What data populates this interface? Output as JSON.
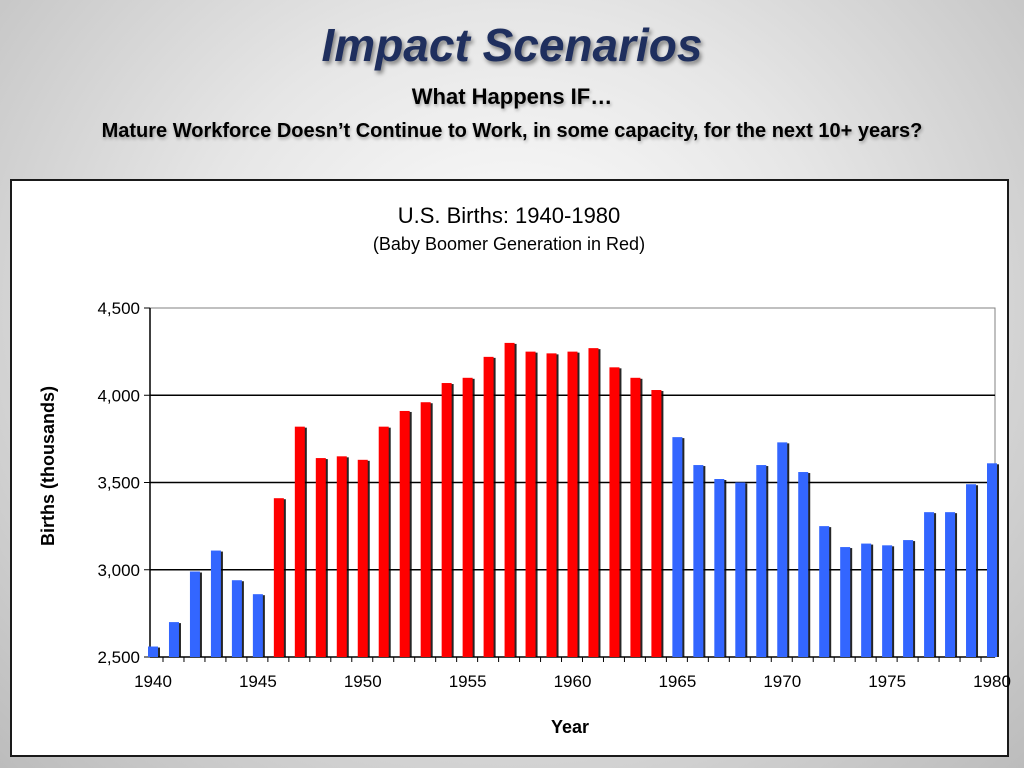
{
  "header": {
    "title": "Impact Scenarios",
    "subtitle": "What Happens IF…",
    "question": "Mature Workforce Doesn’t Continue to Work, in some capacity, for the next 10+ years?"
  },
  "colors": {
    "boomer": "#ff0000",
    "other": "#3366ff",
    "title_color": "#1f2f5e"
  },
  "chart_data": {
    "type": "bar",
    "title": "U.S. Births: 1940-1980",
    "subtitle": "(Baby Boomer Generation in Red)",
    "xlabel": "Year",
    "ylabel": "Births (thousands)",
    "ylim": [
      2500,
      4500
    ],
    "yticks": [
      2500,
      3000,
      3500,
      4000,
      4500
    ],
    "ytick_labels": [
      "2,500",
      "3,000",
      "3,500",
      "4,000",
      "4,500"
    ],
    "xticks": [
      1940,
      1945,
      1950,
      1955,
      1960,
      1965,
      1970,
      1975,
      1980
    ],
    "xtick_labels": [
      "1940",
      "1945",
      "1950",
      "1955",
      "1960",
      "1965",
      "1970",
      "1975",
      "1980"
    ],
    "grid": "horizontal",
    "boomer_years": [
      1946,
      1964
    ],
    "categories": [
      1940,
      1941,
      1942,
      1943,
      1944,
      1945,
      1946,
      1947,
      1948,
      1949,
      1950,
      1951,
      1952,
      1953,
      1954,
      1955,
      1956,
      1957,
      1958,
      1959,
      1960,
      1961,
      1962,
      1963,
      1964,
      1965,
      1966,
      1967,
      1968,
      1969,
      1970,
      1971,
      1972,
      1973,
      1974,
      1975,
      1976,
      1977,
      1978,
      1979,
      1980
    ],
    "values": [
      2560,
      2700,
      2990,
      3110,
      2940,
      2860,
      3410,
      3820,
      3640,
      3650,
      3630,
      3820,
      3910,
      3960,
      4070,
      4100,
      4220,
      4300,
      4250,
      4240,
      4250,
      4270,
      4160,
      4100,
      4030,
      3760,
      3600,
      3520,
      3500,
      3600,
      3730,
      3560,
      3250,
      3130,
      3150,
      3140,
      3170,
      3330,
      3330,
      3490,
      3610
    ]
  }
}
